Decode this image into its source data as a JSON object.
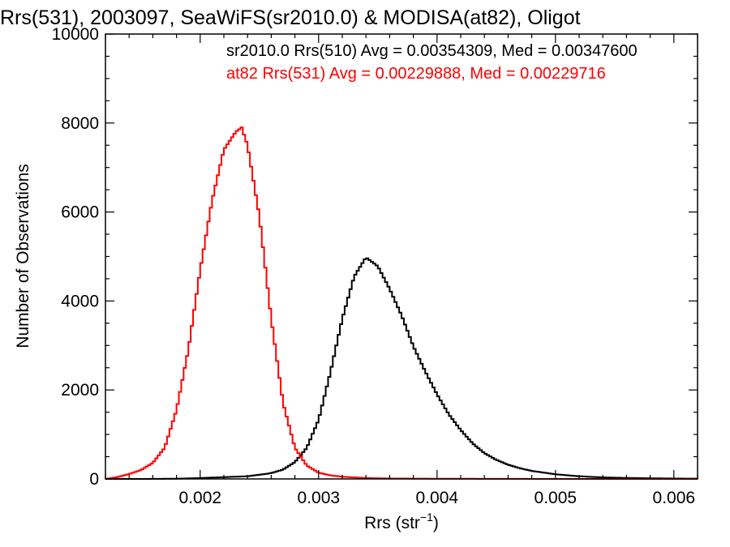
{
  "chart_data": {
    "type": "line",
    "title": "Rrs(531), 2003097, SeaWiFS(sr2010.0) & MODISA(at82), Oligot",
    "xlabel": "Rrs (str",
    "xlabel_sup": "−1",
    "xlabel_close": ")",
    "ylabel": "Number of Observations",
    "xlim": [
      0.0012,
      0.0062
    ],
    "ylim": [
      0,
      10000
    ],
    "x_ticks": [
      0.002,
      0.003,
      0.004,
      0.005,
      0.006
    ],
    "x_tick_labels": [
      "0.002",
      "0.003",
      "0.004",
      "0.005",
      "0.006"
    ],
    "y_ticks": [
      0,
      2000,
      4000,
      6000,
      8000,
      10000
    ],
    "y_tick_labels": [
      "0",
      "2000",
      "4000",
      "6000",
      "8000",
      "10000"
    ],
    "grid": false,
    "legend_position": "top-right",
    "series": [
      {
        "name": "sr2010.0 Rrs(510) Avg = 0.00354309, Med = 0.00347600",
        "color": "#000000",
        "x": [
          0.0012,
          0.0015,
          0.0018,
          0.002,
          0.0022,
          0.0024,
          0.0026,
          0.0027,
          0.0028,
          0.0029,
          0.003,
          0.0031,
          0.0032,
          0.0033,
          0.0034,
          0.0035,
          0.0036,
          0.0037,
          0.0038,
          0.0039,
          0.004,
          0.0041,
          0.0042,
          0.0043,
          0.0044,
          0.0045,
          0.0046,
          0.0047,
          0.0048,
          0.005,
          0.0052,
          0.0054,
          0.0056,
          0.0058,
          0.006,
          0.0062
        ],
        "y": [
          0,
          0,
          5,
          20,
          40,
          60,
          130,
          210,
          380,
          700,
          1330,
          2400,
          3600,
          4550,
          4980,
          4780,
          4270,
          3680,
          2980,
          2420,
          1900,
          1450,
          1100,
          800,
          580,
          430,
          320,
          240,
          180,
          105,
          60,
          35,
          22,
          15,
          10,
          5
        ]
      },
      {
        "name": "at82 Rrs(531) Avg = 0.00229888, Med = 0.00229716",
        "color": "#ff0000",
        "x": [
          0.0012,
          0.0013,
          0.0014,
          0.0015,
          0.0016,
          0.0017,
          0.0018,
          0.0019,
          0.002,
          0.0021,
          0.0022,
          0.0023,
          0.00235,
          0.0024,
          0.0025,
          0.0026,
          0.0027,
          0.0028,
          0.0029,
          0.003,
          0.0031,
          0.0032,
          0.0034,
          0.0036,
          0.004,
          0.005,
          0.0062
        ],
        "y": [
          0,
          40,
          110,
          200,
          360,
          700,
          1550,
          2900,
          4700,
          6250,
          7400,
          7800,
          7900,
          7500,
          5900,
          3600,
          1700,
          700,
          300,
          140,
          80,
          50,
          20,
          10,
          5,
          0,
          0
        ]
      }
    ]
  }
}
